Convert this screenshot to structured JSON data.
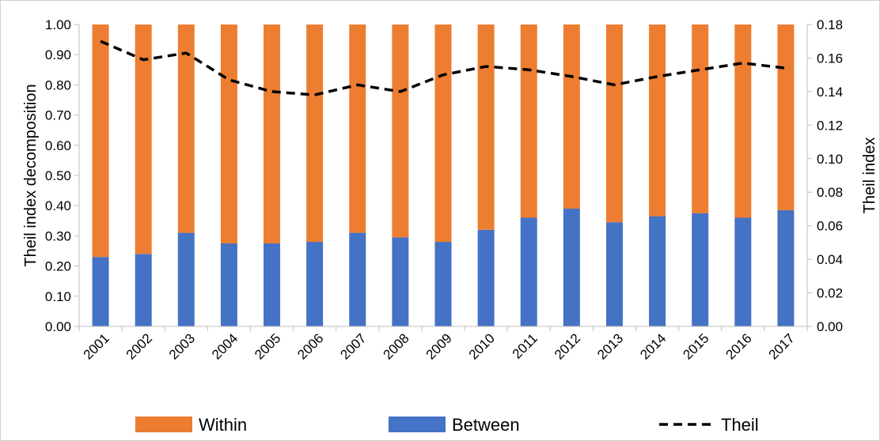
{
  "chart_data": {
    "type": "bar",
    "stacked": true,
    "title": "",
    "categories": [
      "2001",
      "2002",
      "2003",
      "2004",
      "2005",
      "2006",
      "2007",
      "2008",
      "2009",
      "2010",
      "2011",
      "2012",
      "2013",
      "2014",
      "2015",
      "2016",
      "2017"
    ],
    "series": [
      {
        "name": "Between",
        "kind": "bar",
        "axis": "left",
        "color": "#4472C4",
        "values": [
          0.23,
          0.24,
          0.31,
          0.275,
          0.275,
          0.28,
          0.31,
          0.295,
          0.28,
          0.32,
          0.36,
          0.39,
          0.345,
          0.365,
          0.375,
          0.36,
          0.385
        ]
      },
      {
        "name": "Within",
        "kind": "bar",
        "axis": "left",
        "color": "#ED7D31",
        "values": [
          0.77,
          0.76,
          0.69,
          0.725,
          0.725,
          0.72,
          0.69,
          0.705,
          0.72,
          0.68,
          0.64,
          0.61,
          0.655,
          0.635,
          0.625,
          0.64,
          0.615
        ]
      },
      {
        "name": "Theil",
        "kind": "line",
        "axis": "right",
        "color": "#000000",
        "dash": "dashed",
        "values": [
          0.17,
          0.159,
          0.163,
          0.147,
          0.14,
          0.138,
          0.144,
          0.14,
          0.15,
          0.155,
          0.153,
          0.149,
          0.144,
          0.149,
          0.153,
          0.157,
          0.154
        ]
      }
    ],
    "y_left": {
      "label": "Theil index decomposition",
      "min": 0,
      "max": 1.0,
      "ticks": [
        "0.00",
        "0.10",
        "0.20",
        "0.30",
        "0.40",
        "0.50",
        "0.60",
        "0.70",
        "0.80",
        "0.90",
        "1.00"
      ]
    },
    "y_right": {
      "label": "Theil index",
      "min": 0,
      "max": 0.18,
      "ticks": [
        "0.00",
        "0.02",
        "0.04",
        "0.06",
        "0.08",
        "0.10",
        "0.12",
        "0.14",
        "0.16",
        "0.18"
      ]
    },
    "xlabel": "",
    "grid": false,
    "legend": {
      "position": "bottom",
      "order": [
        "Within",
        "Between",
        "Theil"
      ]
    }
  }
}
